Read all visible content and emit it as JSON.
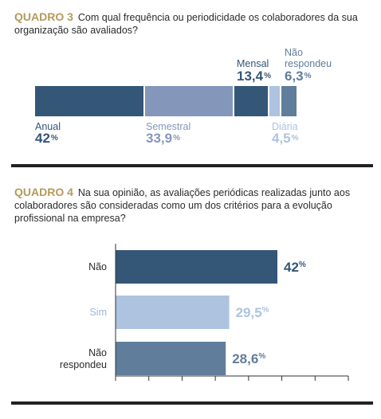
{
  "quadro3": {
    "label": "QUADRO 3",
    "question": "Com qual frequência ou periodicidade os colaboradores da sua organização são avaliados?"
  },
  "quadro4": {
    "label": "QUADRO 4",
    "question": "Na sua opinião, as avaliações periódicas realizadas junto aos colaboradores são consideradas como um dos critérios para a evolução profissional na empresa?"
  },
  "colors": {
    "dark": "#345677",
    "mid": "#8497ba",
    "light": "#adc3e0",
    "slate": "#607d9b",
    "gold": "#b59a5a"
  },
  "chart_data": [
    {
      "type": "bar",
      "orientation": "stacked-horizontal",
      "categories": [
        "Anual",
        "Semestral",
        "Mensal",
        "Diária",
        "Não respondeu"
      ],
      "values": [
        42,
        33.9,
        13.4,
        4.5,
        6.3
      ],
      "value_labels": [
        "42",
        "33,9",
        "13,4",
        "4,5",
        "6,3"
      ],
      "unit": "%",
      "colors": [
        "#345677",
        "#8497ba",
        "#345677",
        "#adc3e0",
        "#607d9b"
      ]
    },
    {
      "type": "bar",
      "orientation": "horizontal",
      "categories": [
        "Não",
        "Sim",
        "Não respondeu"
      ],
      "values": [
        42,
        29.5,
        28.6
      ],
      "value_labels": [
        "42",
        "29,5",
        "28,6"
      ],
      "unit": "%",
      "xlim": [
        0,
        70
      ],
      "colors": [
        "#345677",
        "#adc3e0",
        "#607d9b"
      ],
      "text_colors": [
        "#345677",
        "#adc3e0",
        "#607d9b"
      ],
      "grid": false
    }
  ]
}
